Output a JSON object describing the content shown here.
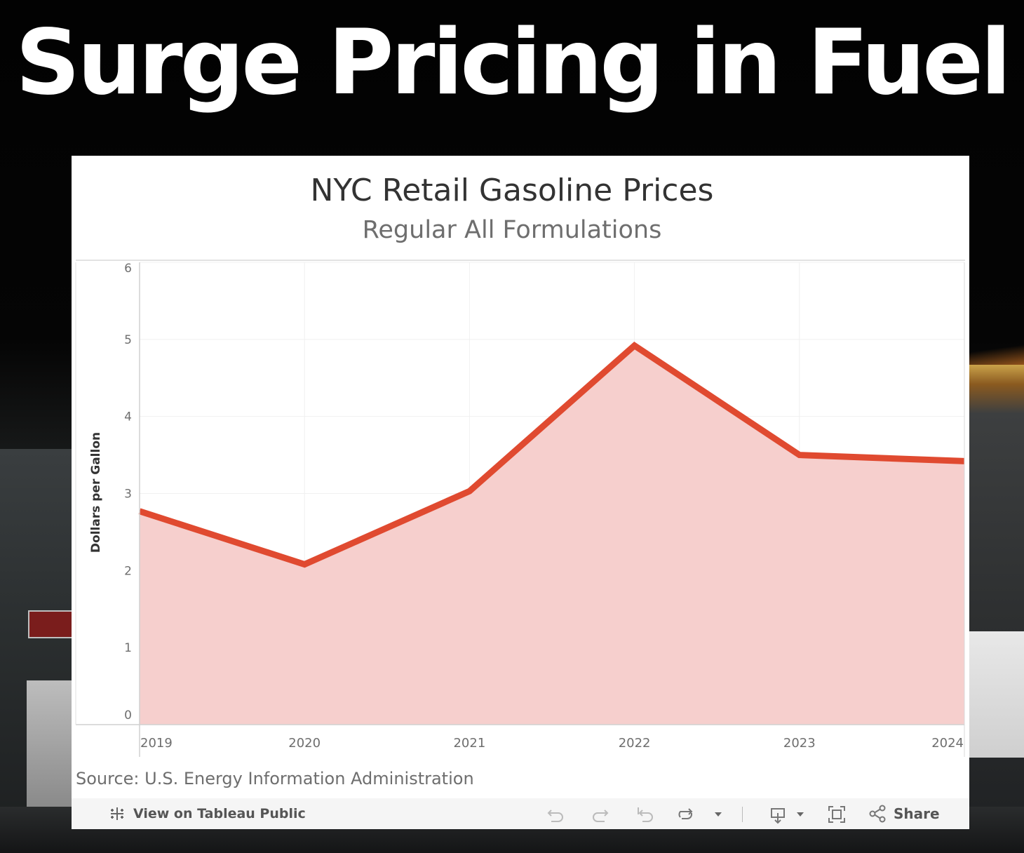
{
  "headline": "Surge Pricing in Fuel",
  "colors": {
    "line": "#e04a30",
    "area": "#f6cfcd",
    "grid": "#f0f0f0",
    "axis_text": "#6e6e6e"
  },
  "chart_data": {
    "type": "area",
    "title": "NYC Retail Gasoline Prices",
    "subtitle": "Regular All Formulations",
    "ylabel": "Dollars per Gallon",
    "xlabel": "",
    "x": [
      "2019",
      "2020",
      "2021",
      "2022",
      "2023",
      "2024"
    ],
    "values": [
      2.77,
      2.08,
      3.03,
      4.92,
      3.5,
      3.42
    ],
    "ylim": [
      0,
      6
    ],
    "yticks": [
      "0",
      "1",
      "2",
      "3",
      "4",
      "5",
      "6"
    ],
    "grid": true,
    "legend": "none"
  },
  "source": "Source: U.S. Energy Information Administration",
  "toolbar": {
    "view_label": "View on Tableau Public",
    "share_label": "Share",
    "icons": [
      "tableau-logo-icon",
      "undo-icon",
      "redo-icon",
      "revert-icon",
      "refresh-icon",
      "dropdown-icon",
      "download-icon",
      "fullscreen-icon",
      "share-icon"
    ]
  }
}
